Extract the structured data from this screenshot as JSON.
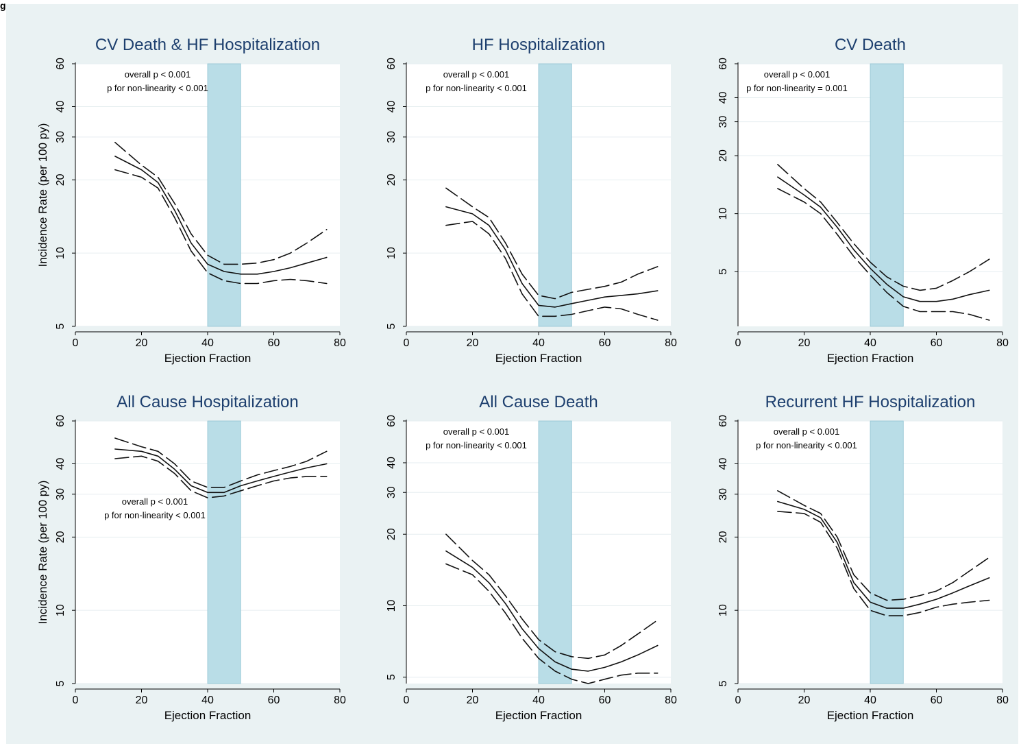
{
  "figure": {
    "corner_label": "g"
  },
  "chart_data": [
    {
      "type": "line",
      "title": "CV Death & HF Hospitalization",
      "xlabel": "Ejection Fraction",
      "ylabel": "Incidence Rate (per 100 py)",
      "xlim": [
        0,
        80
      ],
      "ylim": [
        5,
        60
      ],
      "yscale": "log",
      "xticks": [
        0,
        20,
        40,
        60,
        80
      ],
      "yticks": [
        5,
        10,
        20,
        30,
        40,
        60
      ],
      "shaded_band": [
        40,
        50
      ],
      "annotation": [
        "overall p < 0.001",
        "p for non-linearity < 0.001"
      ],
      "annotation_position": "top-left",
      "series": [
        {
          "role": "upper",
          "style": "dashed",
          "x": [
            12,
            20,
            25,
            30,
            35,
            40,
            45,
            50,
            55,
            60,
            65,
            70,
            76
          ],
          "y": [
            28.5,
            23,
            20.5,
            16,
            12,
            9.8,
            9.0,
            9.0,
            9.1,
            9.4,
            10.0,
            11.0,
            12.5
          ]
        },
        {
          "role": "estimate",
          "style": "solid",
          "x": [
            12,
            20,
            25,
            30,
            35,
            40,
            45,
            50,
            55,
            60,
            65,
            70,
            76
          ],
          "y": [
            25,
            22,
            19.5,
            15,
            11,
            9.0,
            8.4,
            8.2,
            8.2,
            8.4,
            8.7,
            9.1,
            9.6
          ]
        },
        {
          "role": "lower",
          "style": "dashed",
          "x": [
            12,
            20,
            25,
            30,
            35,
            40,
            45,
            50,
            55,
            60,
            65,
            70,
            76
          ],
          "y": [
            22,
            20.5,
            18.5,
            14,
            10.2,
            8.3,
            7.7,
            7.5,
            7.5,
            7.7,
            7.8,
            7.7,
            7.5
          ]
        }
      ]
    },
    {
      "type": "line",
      "title": "HF Hospitalization",
      "xlabel": "Ejection Fraction",
      "ylabel": "",
      "xlim": [
        0,
        80
      ],
      "ylim": [
        5,
        60
      ],
      "yscale": "log",
      "xticks": [
        0,
        20,
        40,
        60,
        80
      ],
      "yticks": [
        5,
        10,
        20,
        30,
        40,
        60
      ],
      "shaded_band": [
        40,
        50
      ],
      "annotation": [
        "overall p < 0.001",
        "p for non-linearity < 0.001"
      ],
      "annotation_position": "top-left",
      "series": [
        {
          "role": "upper",
          "style": "dashed",
          "x": [
            12,
            20,
            25,
            30,
            35,
            40,
            45,
            50,
            55,
            60,
            65,
            70,
            76
          ],
          "y": [
            18.5,
            15.5,
            14,
            11,
            8.2,
            6.7,
            6.5,
            6.9,
            7.1,
            7.3,
            7.6,
            8.2,
            8.8
          ]
        },
        {
          "role": "estimate",
          "style": "solid",
          "x": [
            12,
            20,
            25,
            30,
            35,
            40,
            45,
            50,
            55,
            60,
            65,
            70,
            76
          ],
          "y": [
            15.5,
            14.5,
            13,
            10.3,
            7.5,
            6.1,
            6.0,
            6.2,
            6.4,
            6.6,
            6.7,
            6.8,
            7.0
          ]
        },
        {
          "role": "lower",
          "style": "dashed",
          "x": [
            12,
            20,
            25,
            30,
            35,
            40,
            45,
            50,
            55,
            60,
            65,
            70,
            76
          ],
          "y": [
            13,
            13.5,
            12,
            9.5,
            6.8,
            5.5,
            5.5,
            5.6,
            5.8,
            6.0,
            5.9,
            5.6,
            5.3
          ]
        }
      ]
    },
    {
      "type": "line",
      "title": "CV Death",
      "xlabel": "Ejection Fraction",
      "ylabel": "",
      "xlim": [
        0,
        80
      ],
      "ylim": [
        2.6,
        60
      ],
      "yscale": "log",
      "xticks": [
        0,
        20,
        40,
        60,
        80
      ],
      "yticks": [
        5,
        10,
        20,
        30,
        40,
        60
      ],
      "shaded_band": [
        40,
        50
      ],
      "annotation": [
        "overall p < 0.001",
        "p for non-linearity = 0.001"
      ],
      "annotation_position": "top-left",
      "series": [
        {
          "role": "upper",
          "style": "dashed",
          "x": [
            12,
            20,
            25,
            30,
            35,
            40,
            45,
            50,
            55,
            60,
            65,
            70,
            76
          ],
          "y": [
            18,
            13.5,
            11.5,
            9.0,
            7.0,
            5.6,
            4.7,
            4.2,
            4.0,
            4.1,
            4.5,
            5.0,
            5.8
          ]
        },
        {
          "role": "estimate",
          "style": "solid",
          "x": [
            12,
            20,
            25,
            30,
            35,
            40,
            45,
            50,
            55,
            60,
            65,
            70,
            76
          ],
          "y": [
            15.5,
            12.5,
            10.8,
            8.5,
            6.5,
            5.2,
            4.3,
            3.7,
            3.5,
            3.5,
            3.6,
            3.8,
            4.0
          ]
        },
        {
          "role": "lower",
          "style": "dashed",
          "x": [
            12,
            20,
            25,
            30,
            35,
            40,
            45,
            50,
            55,
            60,
            65,
            70,
            76
          ],
          "y": [
            13.5,
            11.5,
            10,
            7.8,
            6.0,
            4.8,
            3.9,
            3.3,
            3.1,
            3.1,
            3.1,
            3.0,
            2.8
          ]
        }
      ]
    },
    {
      "type": "line",
      "title": "All Cause Hospitalization",
      "xlabel": "Ejection Fraction",
      "ylabel": "Incidence Rate (per 100 py)",
      "xlim": [
        0,
        80
      ],
      "ylim": [
        5,
        60
      ],
      "yscale": "log",
      "xticks": [
        0,
        20,
        40,
        60,
        80
      ],
      "yticks": [
        5,
        10,
        20,
        30,
        40,
        60
      ],
      "shaded_band": [
        40,
        50
      ],
      "annotation": [
        "overall p < 0.001",
        "p for non-linearity < 0.001"
      ],
      "annotation_position": "middle-left",
      "series": [
        {
          "role": "upper",
          "style": "dashed",
          "x": [
            12,
            20,
            25,
            30,
            35,
            40,
            45,
            50,
            55,
            60,
            65,
            70,
            76
          ],
          "y": [
            51,
            47,
            45,
            40,
            34,
            32,
            32,
            34,
            36,
            37.5,
            39,
            41,
            45
          ]
        },
        {
          "role": "estimate",
          "style": "solid",
          "x": [
            12,
            20,
            25,
            30,
            35,
            40,
            45,
            50,
            55,
            60,
            65,
            70,
            76
          ],
          "y": [
            46,
            45,
            43,
            38,
            32.5,
            30.5,
            30.5,
            32.5,
            34,
            35.5,
            37,
            38.5,
            40
          ]
        },
        {
          "role": "lower",
          "style": "dashed",
          "x": [
            12,
            20,
            25,
            30,
            35,
            40,
            45,
            50,
            55,
            60,
            65,
            70,
            76
          ],
          "y": [
            42,
            43,
            41,
            36.5,
            31,
            29,
            29.5,
            31,
            32.5,
            34,
            35,
            35.5,
            35.5
          ]
        }
      ]
    },
    {
      "type": "line",
      "title": "All Cause Death",
      "xlabel": "Ejection Fraction",
      "ylabel": "",
      "xlim": [
        0,
        80
      ],
      "ylim": [
        4.7,
        60
      ],
      "yscale": "log",
      "xticks": [
        0,
        20,
        40,
        60,
        80
      ],
      "yticks": [
        5,
        10,
        20,
        30,
        40,
        60
      ],
      "shaded_band": [
        40,
        50
      ],
      "annotation": [
        "overall p < 0.001",
        "p for non-linearity < 0.001"
      ],
      "annotation_position": "top-left",
      "series": [
        {
          "role": "upper",
          "style": "dashed",
          "x": [
            12,
            20,
            25,
            30,
            35,
            40,
            45,
            50,
            55,
            60,
            65,
            70,
            76
          ],
          "y": [
            20,
            15.5,
            13.5,
            11,
            8.8,
            7.2,
            6.4,
            6.1,
            6.0,
            6.2,
            6.8,
            7.6,
            8.7
          ]
        },
        {
          "role": "estimate",
          "style": "solid",
          "x": [
            12,
            20,
            25,
            30,
            35,
            40,
            45,
            50,
            55,
            60,
            65,
            70,
            76
          ],
          "y": [
            17,
            14.5,
            12.5,
            10.2,
            8.0,
            6.6,
            5.8,
            5.4,
            5.3,
            5.5,
            5.8,
            6.2,
            6.8
          ]
        },
        {
          "role": "lower",
          "style": "dashed",
          "x": [
            12,
            20,
            25,
            30,
            35,
            40,
            45,
            50,
            55,
            60,
            65,
            70,
            76
          ],
          "y": [
            15,
            13.5,
            11.5,
            9.3,
            7.3,
            6.0,
            5.3,
            4.9,
            4.7,
            4.9,
            5.1,
            5.2,
            5.2
          ]
        }
      ]
    },
    {
      "type": "line",
      "title": "Recurrent HF Hospitalization",
      "xlabel": "Ejection Fraction",
      "ylabel": "",
      "xlim": [
        0,
        80
      ],
      "ylim": [
        5,
        60
      ],
      "yscale": "log",
      "xticks": [
        0,
        20,
        40,
        60,
        80
      ],
      "yticks": [
        5,
        10,
        20,
        30,
        40,
        60
      ],
      "shaded_band": [
        40,
        50
      ],
      "annotation": [
        "overall p < 0.001",
        "p for non-linearity < 0.001"
      ],
      "annotation_position": "top-left",
      "series": [
        {
          "role": "upper",
          "style": "dashed",
          "x": [
            12,
            20,
            25,
            30,
            35,
            40,
            45,
            50,
            55,
            60,
            65,
            70,
            76
          ],
          "y": [
            31,
            27,
            25,
            20,
            14,
            11.8,
            11.0,
            11.1,
            11.5,
            12.0,
            13.0,
            14.5,
            16.5
          ]
        },
        {
          "role": "estimate",
          "style": "solid",
          "x": [
            12,
            20,
            25,
            30,
            35,
            40,
            45,
            50,
            55,
            60,
            65,
            70,
            76
          ],
          "y": [
            28,
            26,
            24,
            19,
            13,
            10.8,
            10.2,
            10.2,
            10.6,
            11.1,
            11.8,
            12.6,
            13.6
          ]
        },
        {
          "role": "lower",
          "style": "dashed",
          "x": [
            12,
            20,
            25,
            30,
            35,
            40,
            45,
            50,
            55,
            60,
            65,
            70,
            76
          ],
          "y": [
            25.5,
            25,
            23,
            18,
            12.3,
            10.0,
            9.5,
            9.5,
            9.8,
            10.3,
            10.6,
            10.8,
            11.0
          ]
        }
      ]
    }
  ]
}
